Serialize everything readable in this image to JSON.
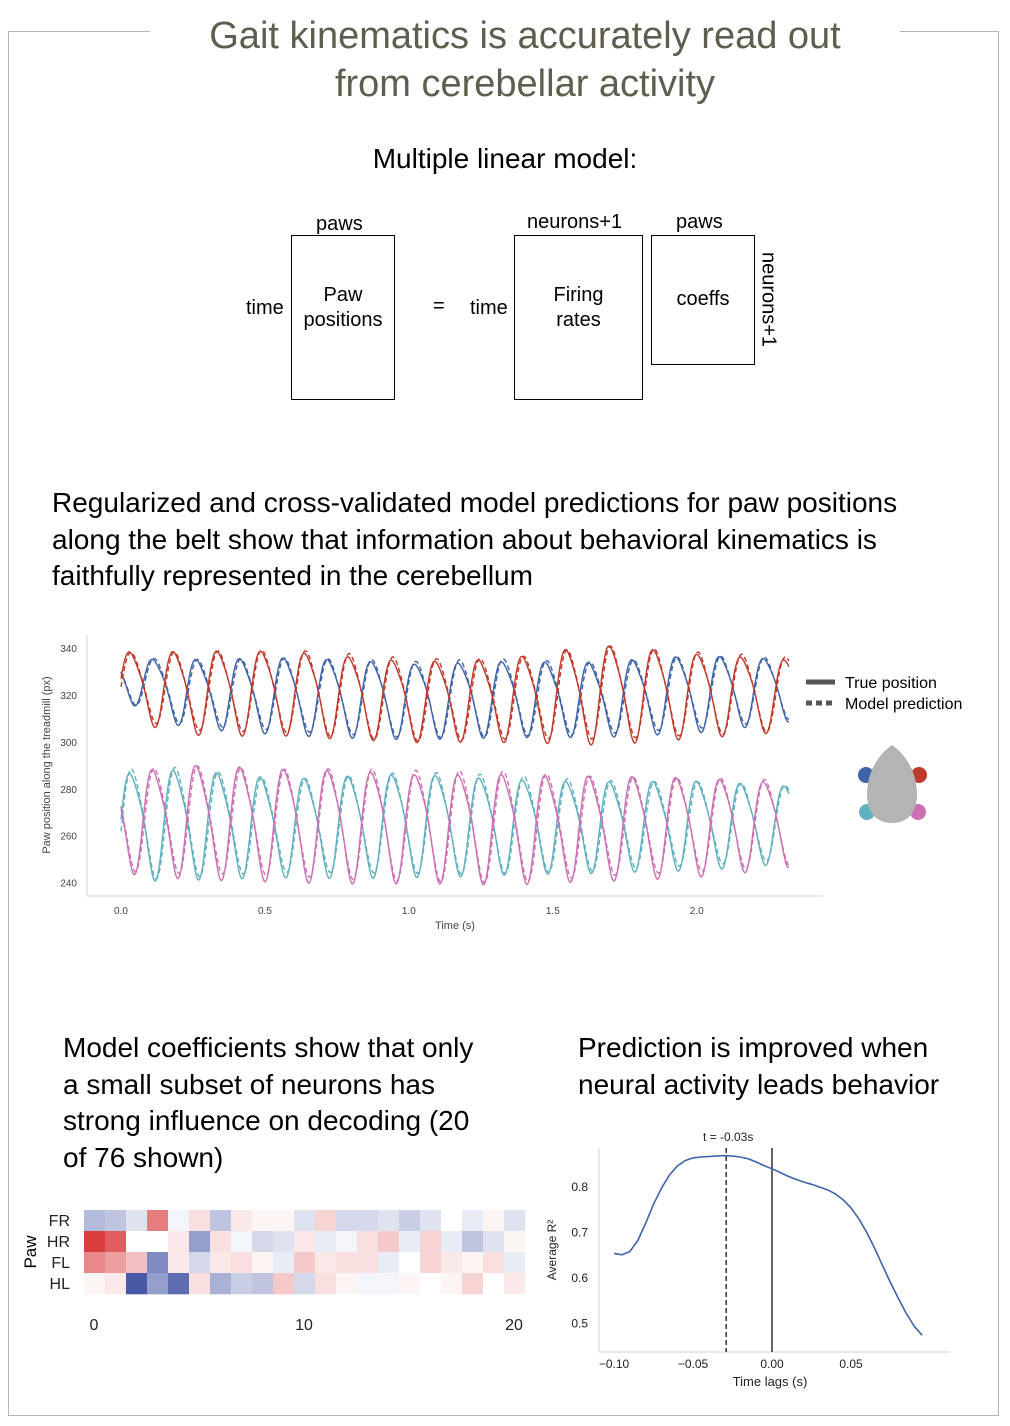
{
  "title_line1": "Gait kinematics is accurately read out",
  "title_line2": "from cerebellar activity",
  "model_heading": "Multiple linear model:",
  "diagram": {
    "paws_top_left": "paws",
    "time_left": "time",
    "paw_positions": [
      "Paw",
      "positions"
    ],
    "equals": "=",
    "neurons_top": "neurons+1",
    "time_mid": "time",
    "firing_rates": [
      "Firing",
      "rates"
    ],
    "paws_top_right": "paws",
    "coeffs": "coeffs",
    "neurons_side": "neurons+1"
  },
  "section2_text": [
    "Regularized and cross-validated model predictions for paw positions",
    "along the belt show that information about behavioral kinematics is",
    "faithfully represented in the cerebellum"
  ],
  "section3_text": [
    "Model coefficients show that only",
    "a small subset of neurons has",
    "strong influence on decoding (20",
    "of 76 shown)"
  ],
  "section4_text": [
    "Prediction is improved when",
    "neural activity leads behavior"
  ],
  "legend": {
    "true_label": "True position",
    "pred_label": "Model prediction"
  },
  "colors": {
    "title": "#5e5d4e",
    "FR": "#c0392b",
    "HR": "#3f63a8",
    "FL": "#5fb0c0",
    "HL": "#cc6fb3",
    "body": "#b4b4b4"
  },
  "chart_data": [
    {
      "type": "line",
      "xlabel": "Time (s)",
      "ylabel": "Paw position along the treadmill (px)",
      "xlim": [
        0,
        2.35
      ],
      "ylim": [
        236,
        343
      ],
      "x_ticks": [
        0.0,
        0.5,
        1.0,
        1.5,
        2.0
      ],
      "x_tick_labels": [
        "0.0",
        "0.5",
        "1.0",
        "1.5",
        "2.0"
      ],
      "y_ticks": [
        240,
        260,
        280,
        300,
        320,
        340
      ],
      "grid": false,
      "legend_position": "right",
      "series": [
        {
          "paw": "front-left",
          "color": "#3f63a8",
          "phase": 0.95,
          "cycles": [
            [
              0.0,
              318,
              337
            ],
            [
              0.22,
              306,
              337
            ],
            [
              0.57,
              304,
              337
            ],
            [
              1.02,
              302,
              335
            ],
            [
              1.35,
              302,
              337
            ],
            [
              1.65,
              302,
              336
            ],
            [
              2.0,
              305,
              338
            ],
            [
              2.35,
              310,
              336
            ]
          ]
        },
        {
          "paw": "front-right",
          "color": "#c0392b",
          "phase": 0.0,
          "cycles": [
            [
              0.0,
              310,
              340
            ],
            [
              0.22,
              304,
              340
            ],
            [
              0.57,
              304,
              340
            ],
            [
              1.02,
              300,
              337
            ],
            [
              1.35,
              300,
              338
            ],
            [
              1.65,
              300,
              343
            ],
            [
              2.0,
              303,
              339
            ],
            [
              2.35,
              305,
              337
            ]
          ]
        },
        {
          "paw": "hind-left",
          "color": "#5fb0c0",
          "phase": 0.0,
          "cycles": [
            [
              0.0,
              241,
              290
            ],
            [
              0.22,
              241,
              292
            ],
            [
              0.57,
              243,
              286
            ],
            [
              1.02,
              244,
              288
            ],
            [
              1.35,
              244,
              287
            ],
            [
              1.65,
              244,
              286
            ],
            [
              2.0,
              246,
              285
            ],
            [
              2.35,
              250,
              282
            ]
          ]
        },
        {
          "paw": "hind-right",
          "color": "#cc6fb3",
          "phase": 0.95,
          "cycles": [
            [
              0.0,
              244,
              290
            ],
            [
              0.22,
              242,
              293
            ],
            [
              0.57,
              242,
              290
            ],
            [
              1.02,
              241,
              289
            ],
            [
              1.35,
              239,
              290
            ],
            [
              1.65,
              241,
              288
            ],
            [
              2.0,
              244,
              286
            ],
            [
              2.35,
              248,
              284
            ]
          ]
        }
      ]
    },
    {
      "type": "heatmap",
      "ylabel": "Paw",
      "rows": [
        "FR",
        "HR",
        "FL",
        "HL"
      ],
      "x_ticks": [
        0,
        10,
        20
      ],
      "x_tick_labels": [
        "0",
        "10",
        "20"
      ],
      "values": [
        [
          -0.35,
          -0.3,
          -0.15,
          0.6,
          -0.05,
          0.15,
          -0.3,
          0.1,
          0.05,
          0.05,
          -0.15,
          0.2,
          -0.2,
          -0.2,
          -0.15,
          -0.25,
          -0.15,
          0.0,
          -0.1,
          0.05,
          -0.15
        ],
        [
          0.9,
          0.75,
          0.0,
          0.0,
          0.1,
          -0.5,
          0.15,
          -0.05,
          -0.2,
          -0.15,
          0.1,
          -0.1,
          -0.05,
          0.15,
          0.25,
          -0.1,
          0.2,
          -0.1,
          -0.3,
          -0.15,
          0.05
        ],
        [
          0.55,
          0.45,
          0.3,
          -0.6,
          0.1,
          -0.2,
          0.1,
          0.15,
          0.05,
          -0.1,
          0.25,
          0.1,
          0.15,
          0.15,
          -0.1,
          0.0,
          0.2,
          0.1,
          0.05,
          0.15,
          -0.1
        ],
        [
          0.05,
          0.1,
          -0.85,
          -0.5,
          -0.75,
          0.15,
          -0.4,
          -0.25,
          -0.3,
          0.25,
          -0.2,
          0.15,
          0.05,
          -0.05,
          -0.05,
          0.05,
          0.0,
          0.05,
          0.2,
          0.0,
          0.1
        ]
      ]
    },
    {
      "type": "line",
      "xlabel": "Time lags (s)",
      "ylabel": "Average R²",
      "xlim": [
        -0.106,
        0.106
      ],
      "ylim": [
        0.455,
        0.885
      ],
      "x_ticks": [
        -0.1,
        -0.05,
        0.0,
        0.05
      ],
      "x_tick_labels": [
        "−0.10",
        "−0.05",
        "0.00",
        "0.05"
      ],
      "y_ticks": [
        0.5,
        0.6,
        0.7,
        0.8
      ],
      "y_tick_labels": [
        "0.5",
        "0.6",
        "0.7",
        "0.8"
      ],
      "annotation": "t = -0.03s",
      "annotation_x": -0.029,
      "zero_line_x": 0.0,
      "x": [
        -0.1,
        -0.095,
        -0.09,
        -0.085,
        -0.08,
        -0.075,
        -0.07,
        -0.065,
        -0.06,
        -0.055,
        -0.05,
        -0.045,
        -0.04,
        -0.035,
        -0.03,
        -0.025,
        -0.02,
        -0.015,
        -0.01,
        -0.005,
        0.0,
        0.005,
        0.01,
        0.015,
        0.02,
        0.025,
        0.03,
        0.035,
        0.04,
        0.045,
        0.05,
        0.055,
        0.06,
        0.065,
        0.07,
        0.075,
        0.08,
        0.085,
        0.09,
        0.095
      ],
      "y": [
        0.654,
        0.651,
        0.658,
        0.682,
        0.72,
        0.762,
        0.797,
        0.826,
        0.846,
        0.858,
        0.864,
        0.866,
        0.867,
        0.868,
        0.869,
        0.868,
        0.866,
        0.862,
        0.855,
        0.847,
        0.84,
        0.832,
        0.824,
        0.817,
        0.811,
        0.806,
        0.8,
        0.794,
        0.785,
        0.772,
        0.754,
        0.73,
        0.7,
        0.665,
        0.627,
        0.59,
        0.555,
        0.522,
        0.494,
        0.474
      ]
    }
  ]
}
